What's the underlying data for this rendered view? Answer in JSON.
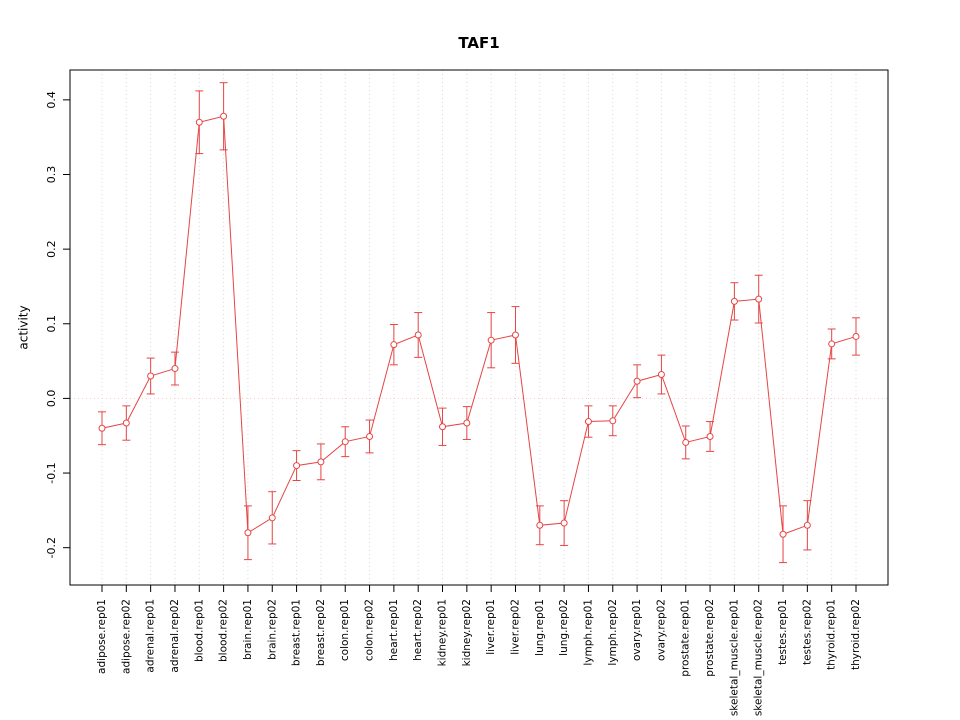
{
  "chart_data": {
    "type": "line",
    "title": "TAF1",
    "xlabel": "",
    "ylabel": "activity",
    "ylim": [
      -0.25,
      0.44
    ],
    "yticks": [
      -0.2,
      -0.1,
      0.0,
      0.1,
      0.2,
      0.3,
      0.4
    ],
    "ytick_labels": [
      "-0.2",
      "-0.1",
      "0.0",
      "0.1",
      "0.2",
      "0.3",
      "0.4"
    ],
    "grid": "vertical-dotted",
    "zero_line": true,
    "legend": "none",
    "series_color": "#e64545",
    "grid_color": "#d9d9d9",
    "zero_line_color": "#f3caca",
    "axis_color": "#000000",
    "categories": [
      "adipose.rep01",
      "adipose.rep02",
      "adrenal.rep01",
      "adrenal.rep02",
      "blood.rep01",
      "blood.rep02",
      "brain.rep01",
      "brain.rep02",
      "breast.rep01",
      "breast.rep02",
      "colon.rep01",
      "colon.rep02",
      "heart.rep01",
      "heart.rep02",
      "kidney.rep01",
      "kidney.rep02",
      "liver.rep01",
      "liver.rep02",
      "lung.rep01",
      "lung.rep02",
      "lymph.rep01",
      "lymph.rep02",
      "ovary.rep01",
      "ovary.rep02",
      "prostate.rep01",
      "prostate.rep02",
      "skeletal_muscle.rep01",
      "skeletal_muscle.rep02",
      "testes.rep01",
      "testes.rep02",
      "thyroid.rep01",
      "thyroid.rep02"
    ],
    "values": [
      -0.04,
      -0.033,
      0.03,
      0.04,
      0.37,
      0.378,
      -0.18,
      -0.16,
      -0.09,
      -0.085,
      -0.058,
      -0.051,
      0.072,
      0.085,
      -0.038,
      -0.033,
      0.078,
      0.085,
      -0.17,
      -0.167,
      -0.031,
      -0.03,
      0.023,
      0.032,
      -0.059,
      -0.051,
      0.13,
      0.133,
      -0.182,
      -0.17,
      0.073,
      0.083
    ],
    "errors": [
      0.022,
      0.023,
      0.024,
      0.022,
      0.042,
      0.045,
      0.036,
      0.035,
      0.02,
      0.024,
      0.02,
      0.022,
      0.027,
      0.03,
      0.025,
      0.022,
      0.037,
      0.038,
      0.026,
      0.03,
      0.021,
      0.02,
      0.022,
      0.026,
      0.022,
      0.02,
      0.025,
      0.032,
      0.038,
      0.033,
      0.02,
      0.025
    ]
  }
}
